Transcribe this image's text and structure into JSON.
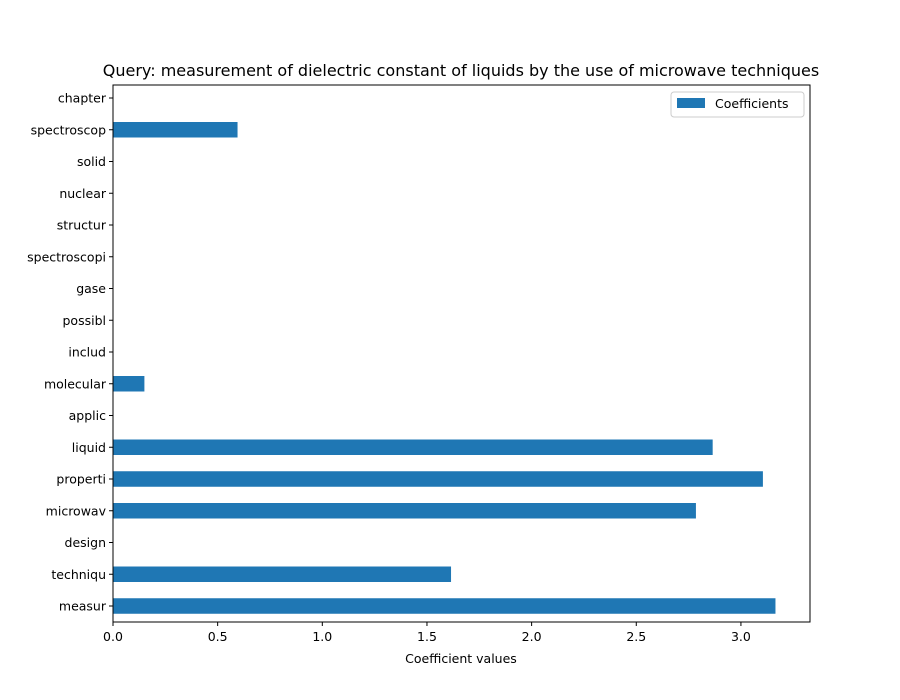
{
  "chart_data": {
    "type": "bar",
    "orientation": "horizontal",
    "title": "Query: measurement of dielectric constant of liquids by the use of microwave techniques",
    "xlabel": "Coefficient values",
    "ylabel": "",
    "categories": [
      "measur",
      "techniqu",
      "design",
      "microwav",
      "properti",
      "liquid",
      "applic",
      "molecular",
      "includ",
      "possibl",
      "gase",
      "spectroscopi",
      "structur",
      "nuclear",
      "solid",
      "spectroscop",
      "chapter"
    ],
    "series": [
      {
        "name": "Coefficients",
        "color": "#1f77b4",
        "values": [
          3.165,
          1.615,
          0.0,
          2.785,
          3.105,
          2.865,
          0.0,
          0.15,
          0.0,
          0.0,
          0.0,
          0.0,
          0.0,
          0.0,
          0.0,
          0.595,
          0.0
        ]
      }
    ],
    "xlim": [
      0,
      3.33
    ],
    "xticks": [
      "0.0",
      "0.5",
      "1.0",
      "1.5",
      "2.0",
      "2.5",
      "3.0"
    ],
    "grid": false,
    "legend_position": "top-right"
  }
}
